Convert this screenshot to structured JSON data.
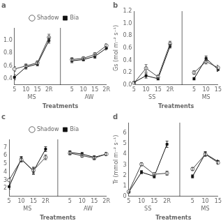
{
  "chart_data": [
    {
      "type": "line",
      "title": "a",
      "xlabel": "Treatments",
      "categories": [
        "5",
        "10",
        "15",
        "2R",
        null,
        "5",
        "10",
        "15",
        "2R"
      ],
      "groups": [
        "MS",
        "AW"
      ],
      "series": [
        {
          "name": "Shadow",
          "color": "#444444",
          "marker": "circle_open",
          "values": [
            0.55,
            0.6,
            0.65,
            1.05,
            null,
            0.7,
            0.72,
            0.78,
            0.92
          ],
          "errors": [
            0.04,
            0.03,
            0.03,
            0.05,
            null,
            0.03,
            0.02,
            0.03,
            0.03
          ]
        },
        {
          "name": "Bia",
          "color": "#111111",
          "marker": "square",
          "values": [
            0.42,
            0.58,
            0.63,
            1.0,
            null,
            0.68,
            0.7,
            0.75,
            0.88
          ],
          "errors": [
            0.04,
            0.03,
            0.03,
            0.04,
            null,
            0.03,
            0.02,
            0.03,
            0.03
          ]
        }
      ],
      "ylim": [
        0.3,
        1.2
      ],
      "yticks": [
        0.4,
        0.6,
        0.8,
        {
          "value": 1,
          "label": "1.0"
        }
      ],
      "grid": false,
      "legend": "top"
    },
    {
      "type": "line",
      "title": "b",
      "xlabel": "Treatments",
      "ylabel": "Gs (mol m⁻² s⁻¹)",
      "categories": [
        "5",
        "10",
        "15",
        "2R",
        null,
        "5",
        "10",
        "15"
      ],
      "groups": [
        "SS",
        "MS"
      ],
      "series": [
        {
          "color": "#444444",
          "marker": "circle_open",
          "values": [
            0.03,
            0.27,
            0.13,
            0.67,
            null,
            0.2,
            0.38,
            0.28
          ],
          "errors": [
            0.01,
            0.06,
            0.03,
            0.04,
            null,
            0.03,
            0.04,
            0.04
          ]
        },
        {
          "color": "#111111",
          "marker": "square",
          "values": [
            0.04,
            0.15,
            0.1,
            0.63,
            null,
            0.1,
            0.43,
            0.25
          ],
          "errors": [
            0.01,
            0.04,
            0.02,
            0.03,
            null,
            0.02,
            0.04,
            0.03
          ]
        }
      ],
      "ylim": [
        0.0,
        1.2
      ],
      "yticks": [
        {
          "value": 0,
          "label": "0.0"
        },
        0.2,
        0.4,
        0.6,
        0.8,
        {
          "value": 1,
          "label": "1.0"
        },
        1.2
      ],
      "grid": false
    },
    {
      "type": "line",
      "title": "c",
      "xlabel": "Treatments",
      "categories": [
        "5",
        "10",
        "15",
        "2R",
        null,
        "5",
        "10",
        "15",
        "2R"
      ],
      "groups": [
        "MS",
        "AW"
      ],
      "series": [
        {
          "name": "Shadow",
          "color": "#444444",
          "marker": "circle_open",
          "values": [
            3.0,
            5.5,
            4.2,
            5.8,
            null,
            6.3,
            6.0,
            5.7,
            6.2
          ],
          "errors": [
            0.3,
            0.3,
            0.4,
            0.3,
            null,
            0.2,
            0.2,
            0.2,
            0.2
          ]
        },
        {
          "name": "Bia",
          "color": "#111111",
          "marker": "square",
          "values": [
            2.2,
            5.6,
            4.1,
            6.8,
            null,
            6.4,
            6.2,
            5.8,
            6.2
          ],
          "errors": [
            0.3,
            0.3,
            0.4,
            0.3,
            null,
            0.2,
            0.2,
            0.2,
            0.2
          ]
        }
      ],
      "ylim": [
        1.0,
        8.0
      ],
      "yticks": [
        2,
        3,
        4,
        5,
        6,
        7
      ],
      "grid": false,
      "legend": "top"
    },
    {
      "type": "line",
      "title": "d",
      "xlabel": "Treatments",
      "ylabel": "Tr (mmol m⁻² s⁻¹)",
      "categories": [
        "5",
        "10",
        "15",
        "2R",
        null,
        "5",
        "10",
        "15"
      ],
      "groups": [
        "SS",
        "MS"
      ],
      "series": [
        {
          "color": "#444444",
          "marker": "circle_open",
          "values": [
            0.45,
            3.05,
            2.1,
            2.2,
            null,
            2.6,
            4.0,
            3.2
          ],
          "errors": [
            0.05,
            0.15,
            0.15,
            0.2,
            null,
            0.15,
            0.2,
            0.15
          ]
        },
        {
          "color": "#111111",
          "marker": "square",
          "values": [
            0.4,
            2.3,
            1.9,
            4.95,
            null,
            1.9,
            4.05,
            3.3
          ],
          "errors": [
            0.05,
            0.15,
            0.15,
            0.3,
            null,
            0.15,
            0.2,
            0.15
          ]
        }
      ],
      "ylim": [
        0,
        7
      ],
      "yticks": [
        0,
        1,
        2,
        3,
        4,
        5,
        6
      ],
      "grid": false
    }
  ]
}
